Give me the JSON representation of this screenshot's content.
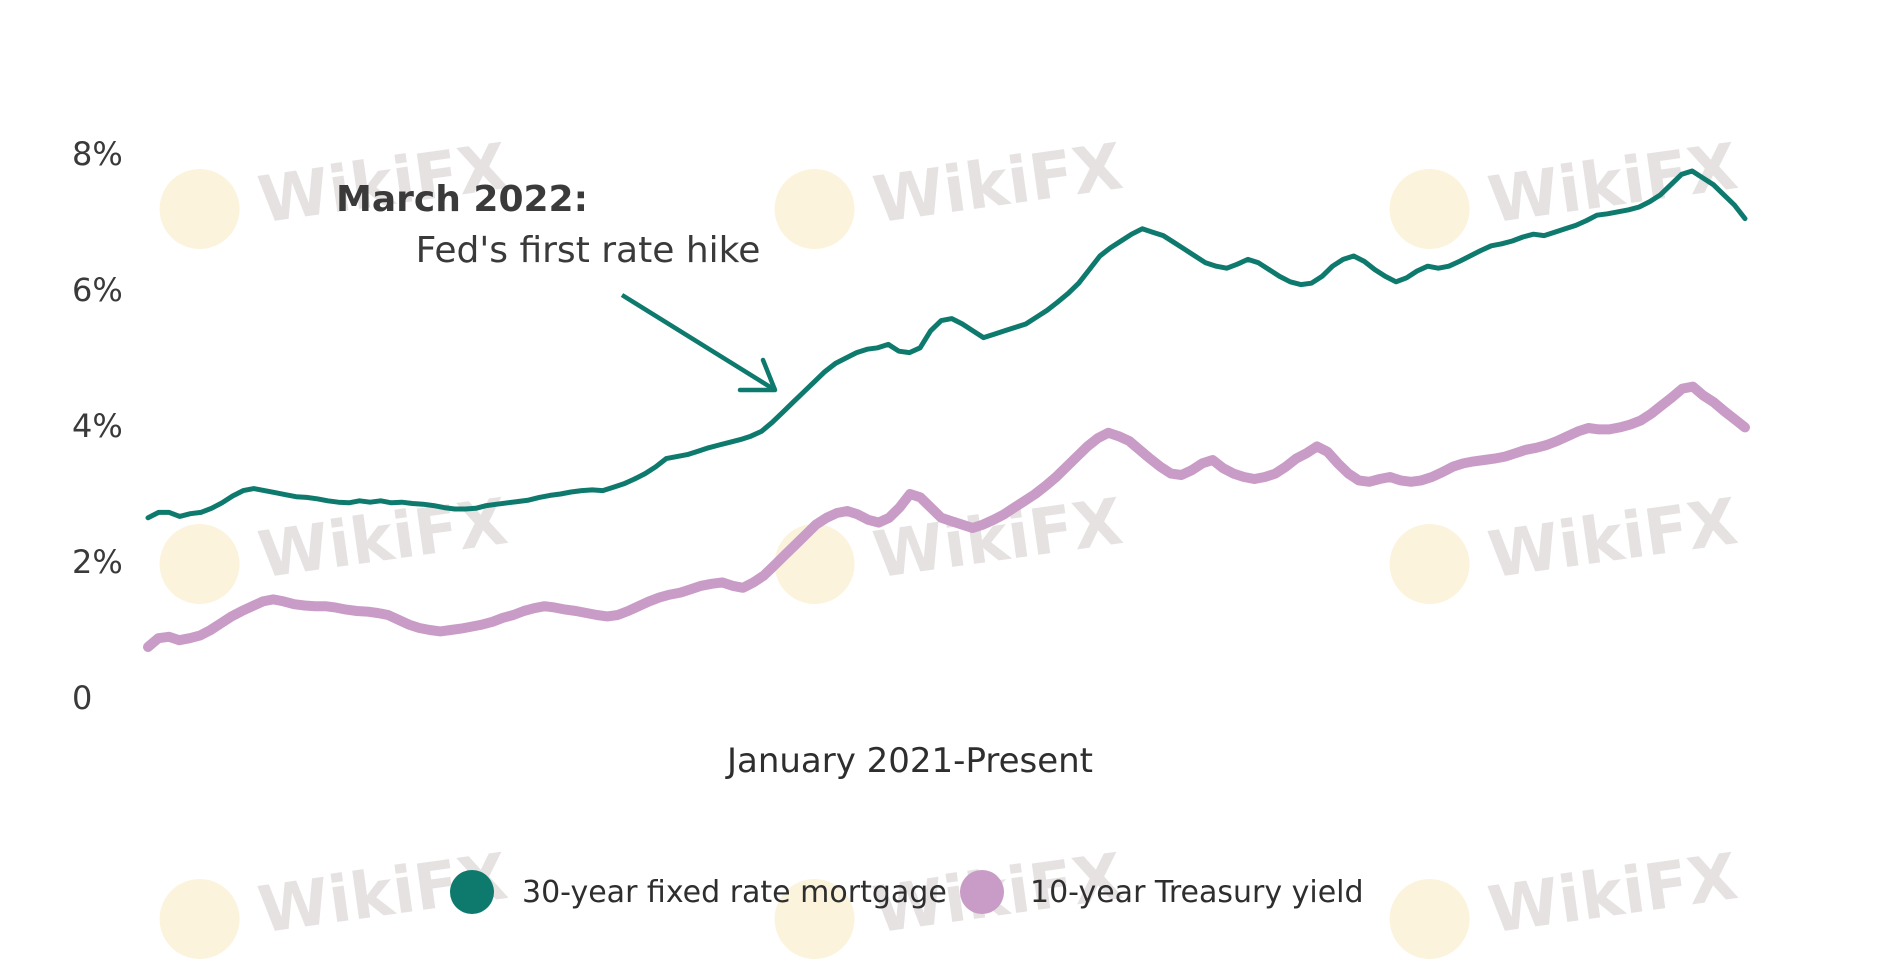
{
  "chart_data": {
    "type": "line",
    "xlabel": "January 2021-Present",
    "ylabel": "",
    "ylim": [
      0,
      8
    ],
    "yticks": [
      {
        "value": 8,
        "label": "8%"
      },
      {
        "value": 6,
        "label": "6%"
      },
      {
        "value": 4,
        "label": "4%"
      },
      {
        "value": 2,
        "label": "2%"
      },
      {
        "value": 0,
        "label": "0"
      }
    ],
    "grid": false,
    "legend_position": "bottom-center",
    "series": [
      {
        "name": "30-year fixed rate mortgage",
        "color": "#0e7a6e",
        "values": [
          2.65,
          2.73,
          2.73,
          2.67,
          2.71,
          2.73,
          2.79,
          2.87,
          2.97,
          3.05,
          3.08,
          3.05,
          3.02,
          2.99,
          2.96,
          2.95,
          2.93,
          2.9,
          2.88,
          2.87,
          2.9,
          2.88,
          2.9,
          2.87,
          2.88,
          2.86,
          2.85,
          2.83,
          2.8,
          2.78,
          2.78,
          2.79,
          2.83,
          2.85,
          2.87,
          2.89,
          2.91,
          2.95,
          2.98,
          3.0,
          3.03,
          3.05,
          3.06,
          3.05,
          3.1,
          3.15,
          3.22,
          3.3,
          3.4,
          3.52,
          3.55,
          3.58,
          3.63,
          3.68,
          3.72,
          3.76,
          3.8,
          3.85,
          3.92,
          4.05,
          4.2,
          4.35,
          4.5,
          4.65,
          4.8,
          4.92,
          5.0,
          5.08,
          5.13,
          5.15,
          5.2,
          5.1,
          5.08,
          5.15,
          5.4,
          5.55,
          5.58,
          5.5,
          5.4,
          5.3,
          5.35,
          5.4,
          5.45,
          5.5,
          5.6,
          5.7,
          5.82,
          5.95,
          6.1,
          6.3,
          6.5,
          6.62,
          6.72,
          6.82,
          6.9,
          6.85,
          6.8,
          6.7,
          6.6,
          6.5,
          6.4,
          6.35,
          6.32,
          6.38,
          6.45,
          6.4,
          6.3,
          6.2,
          6.12,
          6.08,
          6.1,
          6.2,
          6.35,
          6.45,
          6.5,
          6.42,
          6.3,
          6.2,
          6.12,
          6.18,
          6.28,
          6.35,
          6.32,
          6.35,
          6.42,
          6.5,
          6.58,
          6.65,
          6.68,
          6.72,
          6.78,
          6.82,
          6.8,
          6.85,
          6.9,
          6.95,
          7.02,
          7.1,
          7.12,
          7.15,
          7.18,
          7.22,
          7.3,
          7.4,
          7.55,
          7.7,
          7.75,
          7.65,
          7.55,
          7.4,
          7.25,
          7.05
        ]
      },
      {
        "name": "10-year Treasury yield",
        "color": "#c89cc6",
        "values": [
          0.75,
          0.88,
          0.9,
          0.85,
          0.88,
          0.92,
          1.0,
          1.1,
          1.2,
          1.28,
          1.35,
          1.42,
          1.45,
          1.42,
          1.38,
          1.36,
          1.35,
          1.35,
          1.33,
          1.3,
          1.28,
          1.27,
          1.25,
          1.22,
          1.15,
          1.08,
          1.03,
          1.0,
          0.98,
          1.0,
          1.02,
          1.05,
          1.08,
          1.12,
          1.18,
          1.22,
          1.28,
          1.32,
          1.35,
          1.33,
          1.3,
          1.28,
          1.25,
          1.22,
          1.2,
          1.22,
          1.28,
          1.35,
          1.42,
          1.48,
          1.52,
          1.55,
          1.6,
          1.65,
          1.68,
          1.7,
          1.65,
          1.62,
          1.7,
          1.8,
          1.95,
          2.1,
          2.25,
          2.4,
          2.55,
          2.65,
          2.72,
          2.75,
          2.7,
          2.62,
          2.58,
          2.65,
          2.8,
          3.0,
          2.95,
          2.8,
          2.65,
          2.6,
          2.55,
          2.5,
          2.55,
          2.62,
          2.7,
          2.8,
          2.9,
          3.0,
          3.12,
          3.25,
          3.4,
          3.55,
          3.7,
          3.82,
          3.9,
          3.85,
          3.78,
          3.65,
          3.52,
          3.4,
          3.3,
          3.28,
          3.35,
          3.45,
          3.5,
          3.38,
          3.3,
          3.25,
          3.22,
          3.25,
          3.3,
          3.4,
          3.52,
          3.6,
          3.7,
          3.62,
          3.45,
          3.3,
          3.2,
          3.18,
          3.22,
          3.25,
          3.2,
          3.18,
          3.2,
          3.25,
          3.32,
          3.4,
          3.45,
          3.48,
          3.5,
          3.52,
          3.55,
          3.6,
          3.65,
          3.68,
          3.72,
          3.78,
          3.85,
          3.92,
          3.97,
          3.95,
          3.95,
          3.98,
          4.02,
          4.08,
          4.18,
          4.3,
          4.42,
          4.55,
          4.58,
          4.45,
          4.35,
          4.22,
          4.1,
          3.98
        ]
      }
    ],
    "annotations": [
      {
        "title": "March 2022:",
        "text": "Fed's first rate hike",
        "target_index": 60
      }
    ]
  },
  "watermark": {
    "text": "WikiFX"
  }
}
